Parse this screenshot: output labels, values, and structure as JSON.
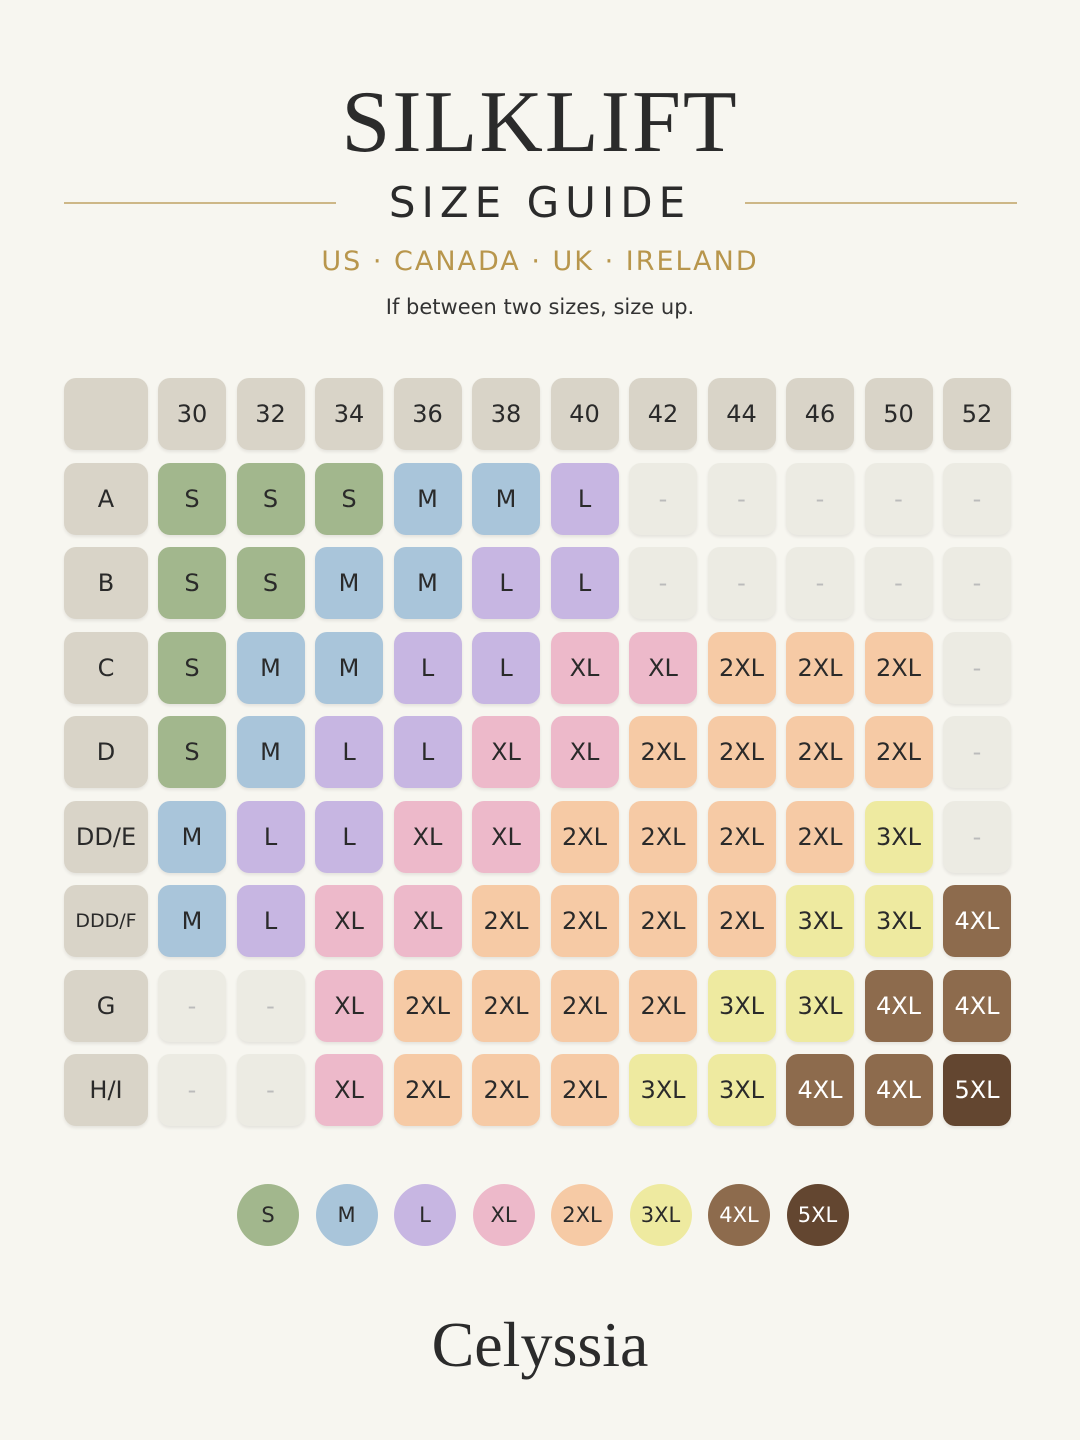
{
  "header": {
    "title": "SILKLIFT",
    "subtitle": "SIZE GUIDE",
    "regions": "US · CANADA · UK · IRELAND",
    "note": "If between two sizes, size up."
  },
  "table": {
    "columns": [
      "30",
      "32",
      "34",
      "36",
      "38",
      "40",
      "42",
      "44",
      "46",
      "50",
      "52"
    ],
    "rows": [
      {
        "label": "A",
        "cells": [
          "S",
          "S",
          "S",
          "M",
          "M",
          "L",
          "-",
          "-",
          "-",
          "-",
          "-"
        ]
      },
      {
        "label": "B",
        "cells": [
          "S",
          "S",
          "M",
          "M",
          "L",
          "L",
          "-",
          "-",
          "-",
          "-",
          "-"
        ]
      },
      {
        "label": "C",
        "cells": [
          "S",
          "M",
          "M",
          "L",
          "L",
          "XL",
          "XL",
          "2XL",
          "2XL",
          "2XL",
          "-"
        ]
      },
      {
        "label": "D",
        "cells": [
          "S",
          "M",
          "L",
          "L",
          "XL",
          "XL",
          "2XL",
          "2XL",
          "2XL",
          "2XL",
          "-"
        ]
      },
      {
        "label": "DD/E",
        "cells": [
          "M",
          "L",
          "L",
          "XL",
          "XL",
          "2XL",
          "2XL",
          "2XL",
          "2XL",
          "3XL",
          "-"
        ]
      },
      {
        "label": "DDD/F",
        "cells": [
          "M",
          "L",
          "XL",
          "XL",
          "2XL",
          "2XL",
          "2XL",
          "2XL",
          "3XL",
          "3XL",
          "4XL"
        ]
      },
      {
        "label": "G",
        "cells": [
          "-",
          "-",
          "XL",
          "2XL",
          "2XL",
          "2XL",
          "2XL",
          "3XL",
          "3XL",
          "4XL",
          "4XL"
        ]
      },
      {
        "label": "H/I",
        "cells": [
          "-",
          "-",
          "XL",
          "2XL",
          "2XL",
          "2XL",
          "3XL",
          "3XL",
          "4XL",
          "4XL",
          "5XL"
        ]
      }
    ]
  },
  "legend": [
    {
      "label": "S",
      "color": "#a2b78d",
      "text_color": "#2a2a2a"
    },
    {
      "label": "M",
      "color": "#a9c5da",
      "text_color": "#2a2a2a"
    },
    {
      "label": "L",
      "color": "#c7b6e2",
      "text_color": "#2a2a2a"
    },
    {
      "label": "XL",
      "color": "#edb9ca",
      "text_color": "#2a2a2a"
    },
    {
      "label": "2XL",
      "color": "#f6caa5",
      "text_color": "#2a2a2a"
    },
    {
      "label": "3XL",
      "color": "#eeeaa0",
      "text_color": "#2a2a2a"
    },
    {
      "label": "4XL",
      "color": "#8d6b4d",
      "text_color": "#ffffff"
    },
    {
      "label": "5XL",
      "color": "#634630",
      "text_color": "#ffffff"
    }
  ],
  "footer": {
    "brand": "Celyssia"
  }
}
